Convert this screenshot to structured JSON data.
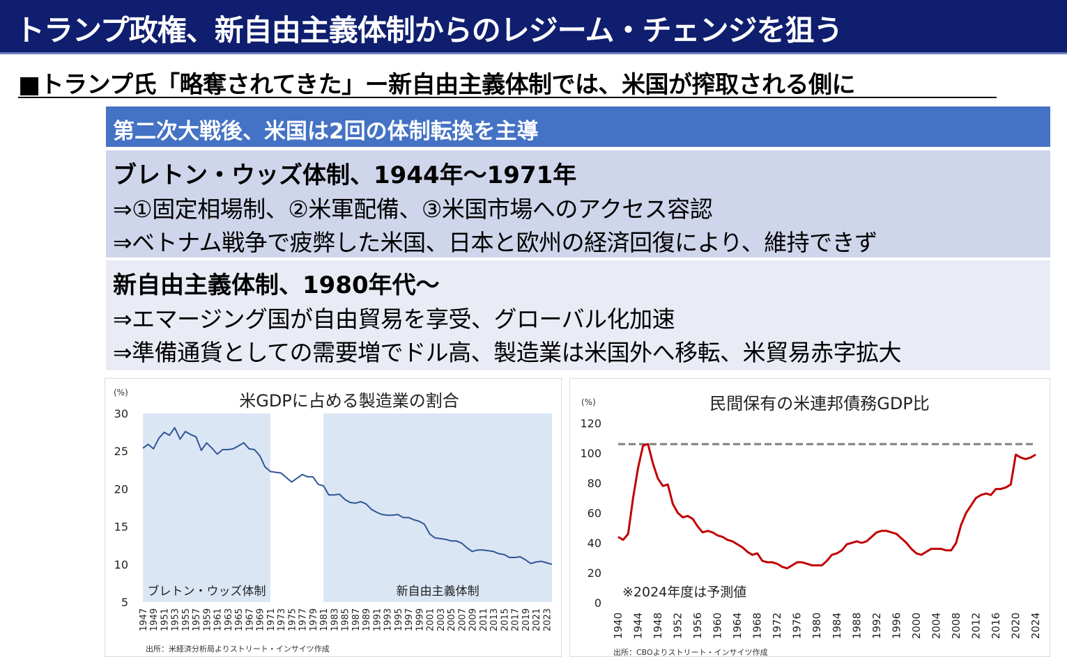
{
  "title": "トランプ政権、新自由主義体制からのレジーム・チェンジを狙う",
  "subheading": "■トランプ氏「略奪されてきた」ー新自由主義体制では、米国が搾取される側に",
  "banner": "第二次大戦後、米国は2回の体制転換を主導",
  "panels": [
    {
      "heading": "ブレトン・ウッズ体制、1944年～1971年",
      "lines": [
        "⇒①固定相場制、②米軍配備、③米国市場へのアクセス容認",
        "⇒ベトナム戦争で疲弊した米国、日本と欧州の経済回復により、維持できず"
      ]
    },
    {
      "heading": "新自由主義体制、1980年代～",
      "lines": [
        "⇒エマージング国が自由貿易を享受、グローバル化加速",
        "⇒準備通貨としての需要増でドル高、製造業は米国外へ移転、米貿易赤字拡大"
      ]
    }
  ],
  "chart_data": [
    {
      "type": "area",
      "title": "米GDPに占める製造業の割合",
      "ylabel": "(%)",
      "ylim": [
        5,
        30
      ],
      "yticks": [
        5,
        10,
        15,
        20,
        25,
        30
      ],
      "xlim": [
        1947,
        2024
      ],
      "xticks": [
        1947,
        1949,
        1951,
        1953,
        1955,
        1957,
        1959,
        1961,
        1963,
        1965,
        1967,
        1969,
        1971,
        1973,
        1975,
        1977,
        1979,
        1981,
        1983,
        1985,
        1987,
        1989,
        1991,
        1993,
        1995,
        1997,
        1999,
        2001,
        2003,
        2005,
        2007,
        2009,
        2011,
        2013,
        2015,
        2017,
        2019,
        2021,
        2023
      ],
      "shaded_regions": [
        {
          "label": "ブレトン・ウッズ体制",
          "from": 1947,
          "to": 1971
        },
        {
          "label": "新自由主義体制",
          "from": 1981,
          "to": 2024
        }
      ],
      "shade_color": "#dbe6f4",
      "line_color": "#2f5597",
      "series": [
        {
          "x": [
            1947,
            1948,
            1949,
            1950,
            1951,
            1952,
            1953,
            1954,
            1955,
            1956,
            1957,
            1958,
            1959,
            1960,
            1961,
            1962,
            1963,
            1964,
            1965,
            1966,
            1967,
            1968,
            1969,
            1970,
            1971,
            1972,
            1973,
            1974,
            1975,
            1976,
            1977,
            1978,
            1979,
            1980,
            1981,
            1982,
            1983,
            1984,
            1985,
            1986,
            1987,
            1988,
            1989,
            1990,
            1991,
            1992,
            1993,
            1994,
            1995,
            1996,
            1997,
            1998,
            1999,
            2000,
            2001,
            2002,
            2003,
            2004,
            2005,
            2006,
            2007,
            2008,
            2009,
            2010,
            2011,
            2012,
            2013,
            2014,
            2015,
            2016,
            2017,
            2018,
            2019,
            2020,
            2021,
            2022,
            2023,
            2024
          ],
          "values": [
            25.4,
            25.9,
            25.3,
            26.7,
            27.5,
            27.1,
            28.1,
            26.6,
            27.6,
            27.2,
            26.9,
            25.1,
            26.1,
            25.4,
            24.6,
            25.2,
            25.2,
            25.3,
            25.7,
            26.1,
            25.3,
            25.2,
            24.4,
            22.9,
            22.3,
            22.2,
            22.1,
            21.5,
            20.9,
            21.4,
            21.9,
            21.6,
            21.6,
            20.6,
            20.4,
            19.2,
            19.2,
            19.3,
            18.6,
            18.2,
            18.1,
            18.3,
            18.0,
            17.3,
            16.9,
            16.6,
            16.5,
            16.5,
            16.6,
            16.2,
            16.2,
            15.9,
            15.7,
            15.3,
            14.0,
            13.5,
            13.4,
            13.3,
            13.1,
            13.1,
            12.8,
            12.2,
            11.7,
            11.9,
            11.9,
            11.8,
            11.7,
            11.4,
            11.3,
            10.9,
            10.9,
            11.0,
            10.6,
            10.1,
            10.3,
            10.4,
            10.2,
            10.0
          ]
        }
      ],
      "source": "出所：米経済分析局よりストリート・インサイツ作成"
    },
    {
      "type": "line",
      "title": "民間保有の米連邦債務GDP比",
      "ylabel": "(%)",
      "ylim": [
        0,
        120
      ],
      "yticks": [
        0,
        20,
        40,
        60,
        80,
        100,
        120
      ],
      "xlim": [
        1940,
        2024
      ],
      "xticks": [
        1940,
        1944,
        1948,
        1952,
        1956,
        1960,
        1964,
        1968,
        1972,
        1976,
        1980,
        1984,
        1988,
        1992,
        1996,
        2000,
        2004,
        2008,
        2012,
        2016,
        2020,
        2024
      ],
      "reference_line": 106,
      "reference_color": "#7f7f7f",
      "line_color": "#c00000",
      "annotation": "※2024年度は予測値",
      "series": [
        {
          "x": [
            1940,
            1941,
            1942,
            1943,
            1944,
            1945,
            1946,
            1947,
            1948,
            1949,
            1950,
            1951,
            1952,
            1953,
            1954,
            1955,
            1956,
            1957,
            1958,
            1959,
            1960,
            1961,
            1962,
            1963,
            1964,
            1965,
            1966,
            1967,
            1968,
            1969,
            1970,
            1971,
            1972,
            1973,
            1974,
            1975,
            1976,
            1977,
            1978,
            1979,
            1980,
            1981,
            1982,
            1983,
            1984,
            1985,
            1986,
            1987,
            1988,
            1989,
            1990,
            1991,
            1992,
            1993,
            1994,
            1995,
            1996,
            1997,
            1998,
            1999,
            2000,
            2001,
            2002,
            2003,
            2004,
            2005,
            2006,
            2007,
            2008,
            2009,
            2010,
            2011,
            2012,
            2013,
            2014,
            2015,
            2016,
            2017,
            2018,
            2019,
            2020,
            2021,
            2022,
            2023,
            2024
          ],
          "values": [
            44,
            42,
            46,
            70,
            90,
            105,
            106,
            93,
            83,
            78,
            79,
            66,
            60,
            57,
            58,
            56,
            51,
            47,
            48,
            47,
            45,
            44,
            42,
            41,
            39,
            37,
            34,
            32,
            33,
            28,
            27,
            27,
            26,
            24,
            23,
            25,
            27,
            27,
            26,
            25,
            25,
            25,
            28,
            32,
            33,
            35,
            39,
            40,
            41,
            40,
            41,
            44,
            47,
            48,
            48,
            47,
            46,
            43,
            40,
            36,
            33,
            32,
            34,
            36,
            36,
            36,
            35,
            35,
            40,
            52,
            60,
            65,
            70,
            72,
            73,
            72,
            76,
            76,
            77,
            79,
            99,
            97,
            96,
            97,
            99
          ]
        }
      ],
      "source": "出所：CBOよりストリート・インサイツ作成"
    }
  ]
}
